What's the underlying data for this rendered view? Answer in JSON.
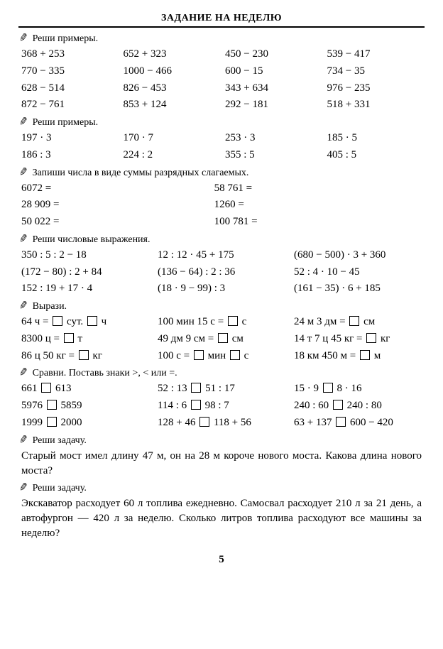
{
  "header": "ЗАДАНИЕ НА НЕДЕЛЮ",
  "page_number": "5",
  "pencil_glyph": "✎",
  "tasks": {
    "t1": {
      "title": "Реши примеры.",
      "cols": 4,
      "items": [
        "368 + 253",
        "652 + 323",
        "450 − 230",
        "539 − 417",
        "770 − 335",
        "1000 − 466",
        "600 − 15",
        "734 − 35",
        "628 − 514",
        "826 − 453",
        "343 + 634",
        "976 − 235",
        "872 − 761",
        "853 + 124",
        "292 − 181",
        "518 + 331"
      ]
    },
    "t2": {
      "title": "Реши примеры.",
      "cols": 4,
      "items": [
        "197 · 3",
        "170 · 7",
        "253 · 3",
        "185 · 5",
        "186 : 3",
        "224 : 2",
        "355 : 5",
        "405 : 5"
      ]
    },
    "t3": {
      "title": "Запиши числа в виде суммы разрядных слагаемых.",
      "cols": 2,
      "items": [
        "6072 =",
        "58 761 =",
        "28 909 =",
        "1260 =",
        "50 022 =",
        "100 781 ="
      ]
    },
    "t4": {
      "title": "Реши числовые выражения.",
      "cols": 3,
      "items": [
        "350 : 5 : 2 − 18",
        "12 : 12 · 45 + 175",
        "(680 − 500) · 3 + 360",
        "(172 − 80) : 2 + 84",
        "(136 − 64) : 2 : 36",
        "52 : 4 · 10 − 45",
        "152 : 19 + 17 · 4",
        "(18 · 9 − 99) : 3",
        "(161 − 35) · 6 + 185"
      ]
    },
    "t5": {
      "title": "Вырази.",
      "cols": 3,
      "items": [
        [
          "64 ч = ",
          " сут. ",
          " ч"
        ],
        [
          "100 мин 15 с = ",
          " с"
        ],
        [
          "24 м 3 дм = ",
          " см"
        ],
        [
          "8300 ц = ",
          " т"
        ],
        [
          "49 дм 9 см = ",
          " см"
        ],
        [
          "14 т 7 ц 45 кг = ",
          " кг"
        ],
        [
          "86 ц 50 кг = ",
          " кг"
        ],
        [
          "100 с = ",
          " мин ",
          " с"
        ],
        [
          "18 км 450 м = ",
          " м"
        ]
      ]
    },
    "t6": {
      "title": "Сравни. Поставь знаки >, < или =.",
      "cols": 3,
      "items": [
        [
          "661",
          " 613"
        ],
        [
          "52 : 13",
          " 51 : 17"
        ],
        [
          "15 · 9",
          " 8 · 16"
        ],
        [
          "5976",
          " 5859"
        ],
        [
          "114 : 6",
          " 98 : 7"
        ],
        [
          "240 : 60",
          " 240 : 80"
        ],
        [
          "1999",
          " 2000"
        ],
        [
          "128 + 46",
          " 118 + 56"
        ],
        [
          "63 + 137",
          " 600 − 420"
        ]
      ]
    },
    "t7": {
      "title": "Реши задачу.",
      "text": "Старый мост имел длину 47 м, он на 28 м короче нового моста. Какова длина нового моста?"
    },
    "t8": {
      "title": "Реши задачу.",
      "text": "Экскаватор расходует 60 л топлива ежедневно. Самосвал расходует 210 л за 21 день, а автофургон — 420 л за неделю. Сколько литров топлива расходуют все машины за неделю?"
    }
  }
}
